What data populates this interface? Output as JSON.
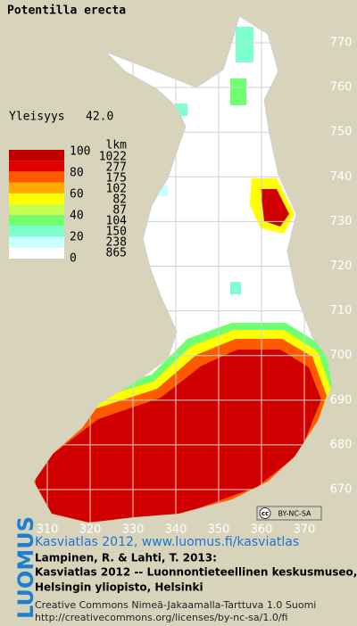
{
  "title": "Potentilla erecta",
  "frequency": {
    "label": "Yleisyys",
    "value": "42.0"
  },
  "legend": {
    "scale_labels": [
      "100",
      "80",
      "60",
      "40",
      "20",
      "0"
    ],
    "count_header": "lkm",
    "counts": [
      "1022",
      "277",
      "175",
      "102",
      "82",
      "87",
      "104",
      "150",
      "238",
      "865"
    ],
    "colors": [
      "#c00000",
      "#e00000",
      "#ff5a00",
      "#ffa800",
      "#ffff00",
      "#c8ff50",
      "#70ff70",
      "#80ffd0",
      "#c8ffff",
      "#ffffff"
    ]
  },
  "x_axis_labels": [
    "310",
    "320",
    "330",
    "340",
    "350",
    "360",
    "370"
  ],
  "y_axis_labels": [
    "670",
    "680",
    "690",
    "700",
    "710",
    "720",
    "730",
    "740",
    "750",
    "760",
    "770"
  ],
  "license_badge": {
    "icon": "cc",
    "text": "BY-NC-SA"
  },
  "footer": {
    "logo": "LUOMUS",
    "link": "Kasviatlas 2012, www.luomus.fi/kasviatlas",
    "citation": [
      "Lampinen, R. & Lahti, T. 2013:",
      "Kasviatlas 2012 -- Luonnontieteellinen keskusmuseo,",
      "Helsingin yliopisto, Helsinki"
    ],
    "license": "Creative Commons Nimeä-Jakaamalla-Tarttuva 1.0 Suomi",
    "license_url": "http://creativecommons.org/licenses/by-nc-sa/1.0/fi"
  }
}
